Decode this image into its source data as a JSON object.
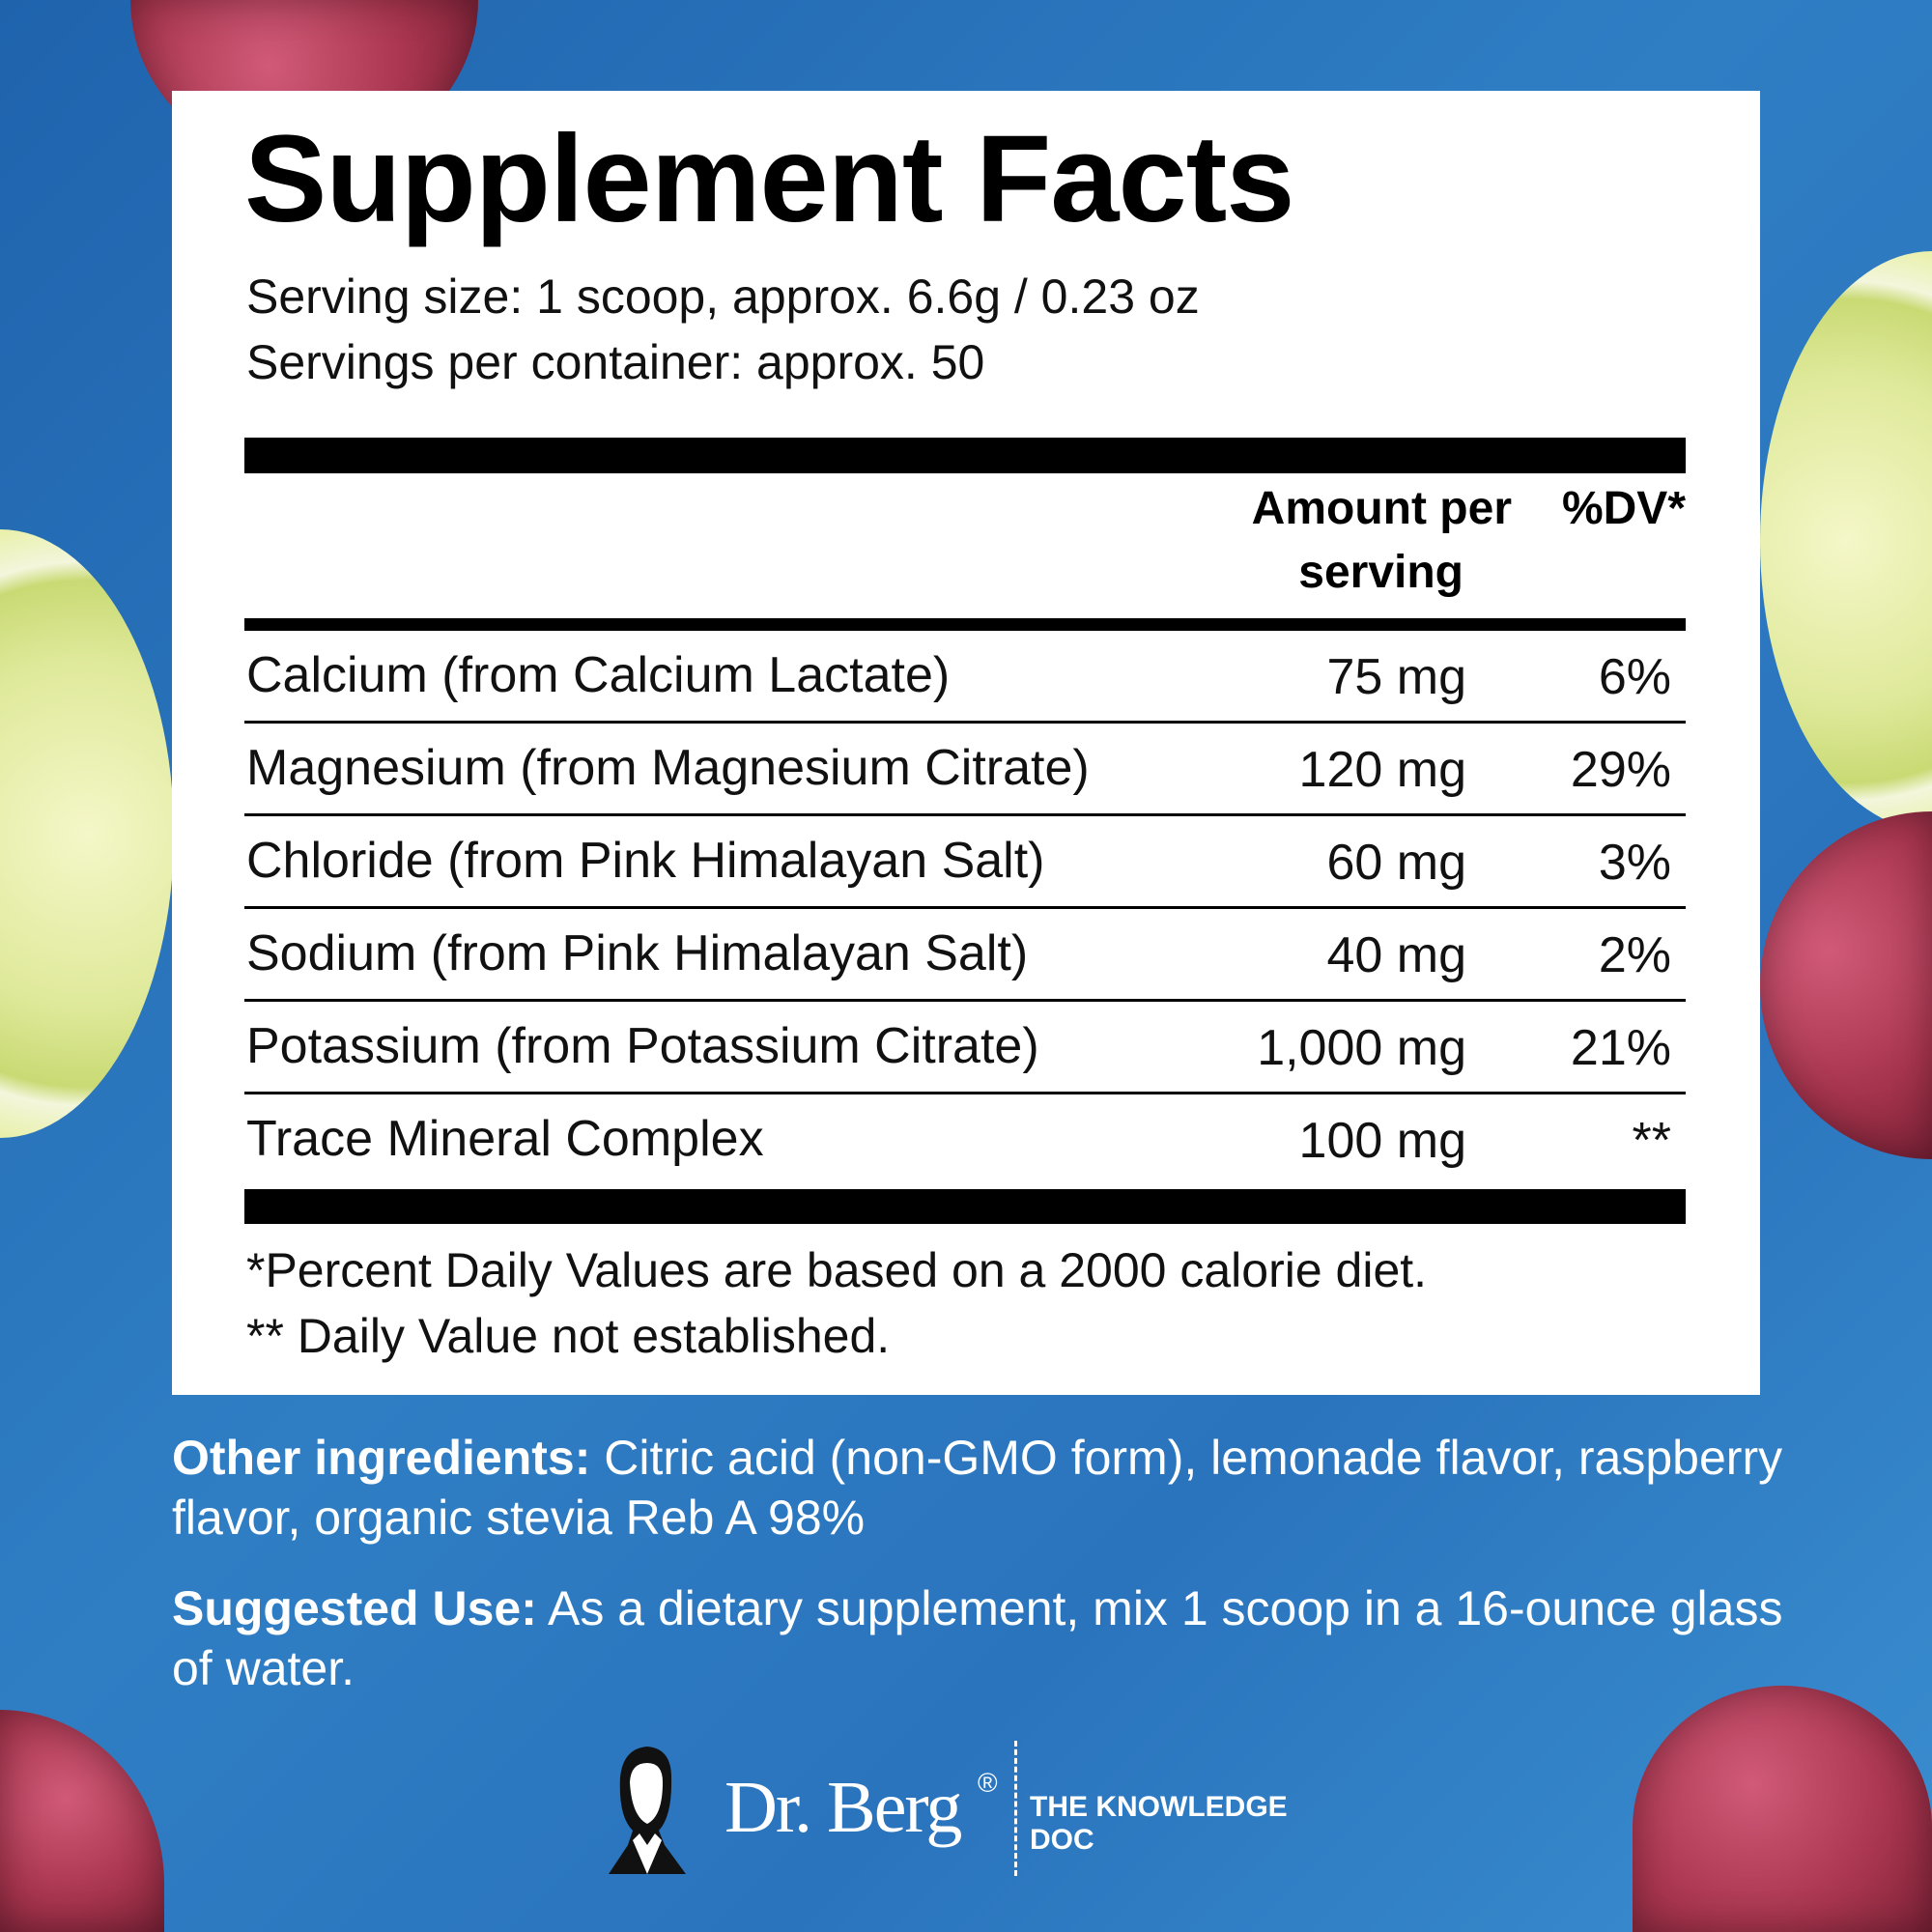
{
  "title": "Supplement Facts",
  "serving_size": "Serving size: 1 scoop, approx. 6.6g / 0.23 oz",
  "servings_per_container": "Servings per container: approx. 50",
  "header": {
    "amount_line1": "Amount per",
    "amount_line2": "serving",
    "dv": "%DV*"
  },
  "rows": [
    {
      "name": "Calcium (from Calcium Lactate)",
      "amount": "75 mg",
      "dv": "6%"
    },
    {
      "name": "Magnesium (from Magnesium Citrate)",
      "amount": "120 mg",
      "dv": "29%"
    },
    {
      "name": "Chloride (from Pink Himalayan Salt)",
      "amount": "60 mg",
      "dv": "3%"
    },
    {
      "name": "Sodium (from Pink Himalayan Salt)",
      "amount": "40 mg",
      "dv": "2%"
    },
    {
      "name": "Potassium (from Potassium Citrate)",
      "amount": "1,000 mg",
      "dv": "21%"
    },
    {
      "name": "Trace Mineral Complex",
      "amount": "100 mg",
      "dv": "**"
    }
  ],
  "footnotes": [
    "*Percent Daily Values are based on a 2000 calorie diet.",
    "** Daily Value not established."
  ],
  "other_ingredients": {
    "label": "Other ingredients:",
    "text": " Citric acid (non-GMO form), lemonade flavor, raspberry flavor, organic stevia Reb A 98%"
  },
  "suggested_use": {
    "label": "Suggested Use:",
    "text": " As a dietary supplement, mix 1 scoop in a 16-ounce glass of water."
  },
  "logo": {
    "brand": "Dr. Berg",
    "reg": "®",
    "tagline": "THE KNOWLEDGE DOC"
  }
}
